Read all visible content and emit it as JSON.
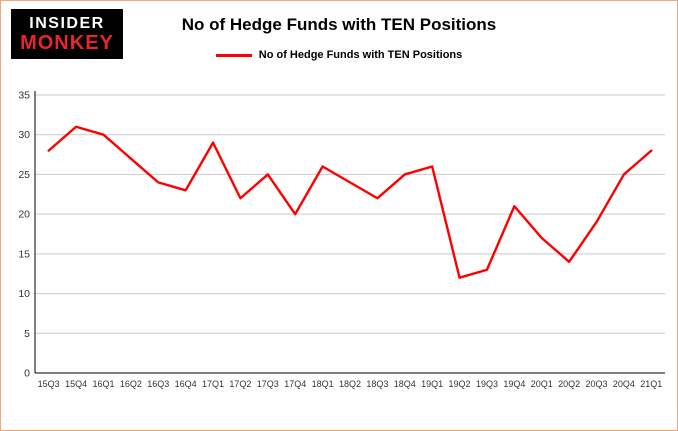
{
  "logo": {
    "line1": "INSIDER",
    "line2": "MONKEY"
  },
  "header": {
    "title": "No of Hedge Funds with TEN Positions"
  },
  "legend": {
    "label": "No of Hedge Funds with TEN Positions"
  },
  "colors": {
    "series": "#fe0000",
    "grid": "#c9c9c9",
    "axis": "#000000",
    "text": "#333333",
    "border": "#efa77c",
    "logo_bg": "#000000",
    "logo_monkey": "#e8262a"
  },
  "chart_data": {
    "type": "line",
    "title": "No of Hedge Funds with TEN Positions",
    "xlabel": "",
    "ylabel": "",
    "categories": [
      "15Q3",
      "15Q4",
      "16Q1",
      "16Q2",
      "16Q3",
      "16Q4",
      "17Q1",
      "17Q2",
      "17Q3",
      "17Q4",
      "18Q1",
      "18Q2",
      "18Q3",
      "18Q4",
      "19Q1",
      "19Q2",
      "19Q3",
      "19Q4",
      "20Q1",
      "20Q2",
      "20Q3",
      "20Q4",
      "21Q1"
    ],
    "series": [
      {
        "name": "No of Hedge Funds with TEN Positions",
        "color": "#fe0000",
        "values": [
          28,
          31,
          30,
          27,
          24,
          23,
          29,
          22,
          25,
          20,
          26,
          24,
          22,
          25,
          26,
          12,
          13,
          21,
          17,
          14,
          19,
          25,
          28
        ]
      }
    ],
    "ylim": [
      0,
      35
    ],
    "yticks": [
      0,
      5,
      10,
      15,
      20,
      25,
      30,
      35
    ],
    "grid": true,
    "legend_position": "top"
  }
}
